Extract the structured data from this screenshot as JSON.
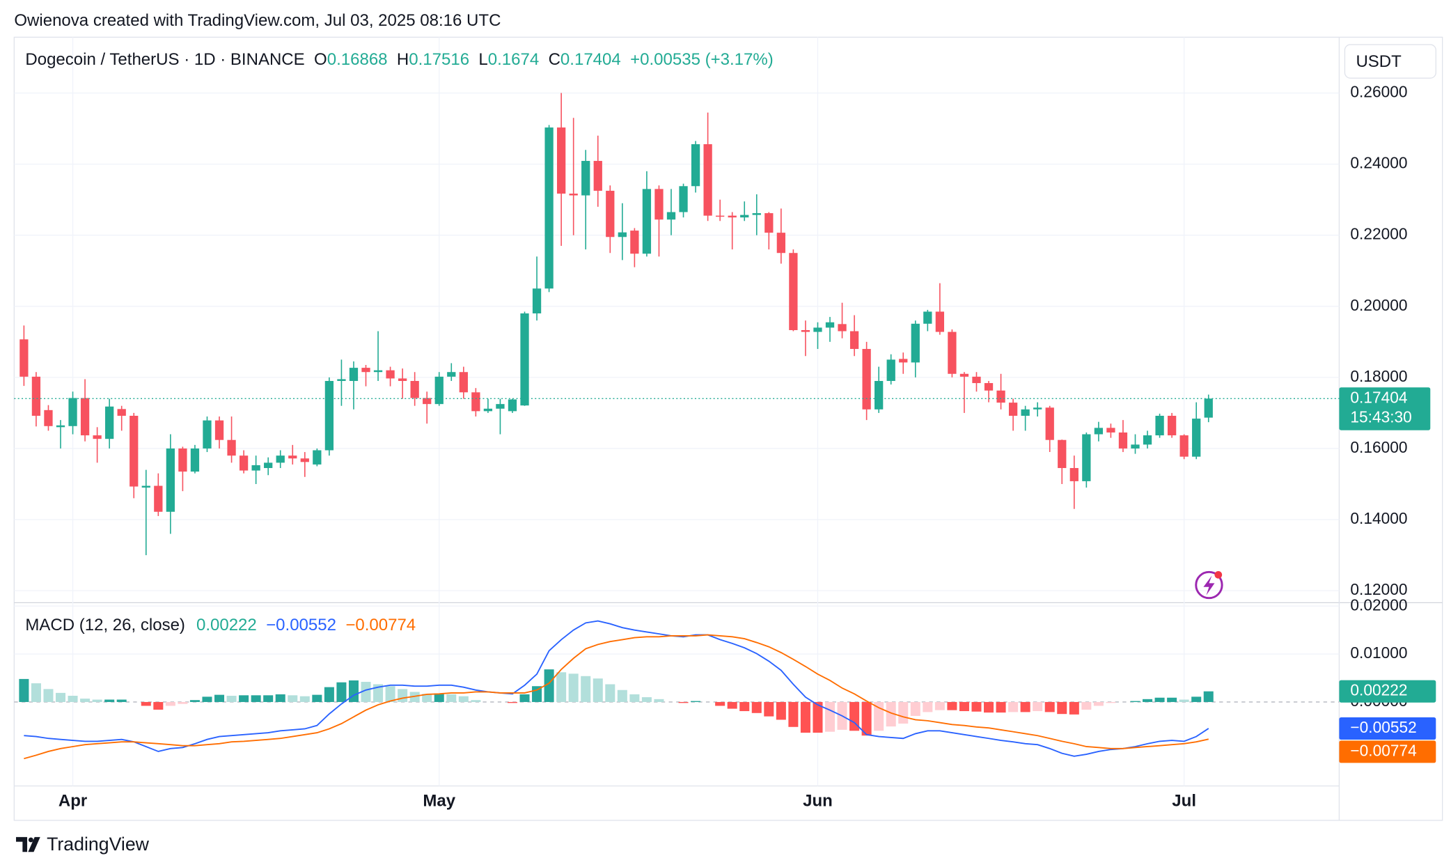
{
  "attribution": "Owienova created with TradingView.com, Jul 03, 2025 08:16 UTC",
  "header": {
    "symbol": "Dogecoin / TetherUS · 1D · BINANCE",
    "o": "O",
    "h": "H",
    "l": "L",
    "c": "C",
    "change": "+0.00535 (+3.17%)"
  },
  "currency": "USDT",
  "footer": "TradingView",
  "chart_data": [
    {
      "type": "candlestick",
      "up_color": "#22ab94",
      "down_color": "#f7525f",
      "countdown": "15:43:30",
      "xlim": [
        -0.8,
        107.7
      ],
      "xticks": [
        {
          "value": 4,
          "label": "Apr"
        },
        {
          "value": 34,
          "label": "May"
        },
        {
          "value": 65,
          "label": "Jun"
        },
        {
          "value": 95,
          "label": "Jul"
        }
      ],
      "ylim": [
        0.1174,
        0.2757
      ],
      "yticks": [
        {
          "value": 0.12,
          "label": "0.12000"
        },
        {
          "value": 0.14,
          "label": "0.14000"
        },
        {
          "value": 0.16,
          "label": "0.16000"
        },
        {
          "value": 0.18,
          "label": "0.18000"
        },
        {
          "value": 0.2,
          "label": "0.20000"
        },
        {
          "value": 0.22,
          "label": "0.22000"
        },
        {
          "value": 0.24,
          "label": "0.24000"
        },
        {
          "value": 0.26,
          "label": "0.26000"
        }
      ],
      "grid": true,
      "open": [
        0.1907,
        0.1802,
        0.1708,
        0.166,
        0.1663,
        0.1742,
        0.1637,
        0.1627,
        0.1711,
        0.1692,
        0.149,
        0.1495,
        0.1422,
        0.16,
        0.1535,
        0.16,
        0.1679,
        0.1624,
        0.158,
        0.1538,
        0.1545,
        0.156,
        0.158,
        0.1572,
        0.1555,
        0.1595,
        0.179,
        0.179,
        0.1827,
        0.1815,
        0.182,
        0.1797,
        0.179,
        0.1742,
        0.1725,
        0.1802,
        0.1815,
        0.1758,
        0.1705,
        0.1712,
        0.1705,
        0.1721,
        0.198,
        0.205,
        0.2503,
        0.2317,
        0.2312,
        0.2409,
        0.2325,
        0.2195,
        0.2213,
        0.2148,
        0.233,
        0.2244,
        0.2265,
        0.2338,
        0.2456,
        0.2255,
        0.2255,
        0.225,
        0.2257,
        0.2262,
        0.2207,
        0.215,
        0.1933,
        0.1928,
        0.194,
        0.195,
        0.193,
        0.188,
        0.171,
        0.179,
        0.1852,
        0.1842,
        0.1951,
        0.1985,
        0.1928,
        0.181,
        0.1802,
        0.1784,
        0.1763,
        0.1729,
        0.1692,
        0.171,
        0.1715,
        0.1624,
        0.1545,
        0.1508,
        0.164,
        0.1658,
        0.1645,
        0.16,
        0.1611,
        0.1637,
        0.1692,
        0.1637,
        0.1577,
        0.16868
      ],
      "high": [
        0.1946,
        0.1815,
        0.1722,
        0.168,
        0.176,
        0.1795,
        0.166,
        0.174,
        0.172,
        0.17,
        0.154,
        0.153,
        0.164,
        0.1605,
        0.161,
        0.169,
        0.169,
        0.169,
        0.1595,
        0.158,
        0.1575,
        0.1595,
        0.161,
        0.159,
        0.16,
        0.18,
        0.185,
        0.1845,
        0.1835,
        0.193,
        0.183,
        0.1825,
        0.1815,
        0.176,
        0.1815,
        0.184,
        0.183,
        0.177,
        0.174,
        0.174,
        0.174,
        0.1985,
        0.214,
        0.251,
        0.26,
        0.253,
        0.244,
        0.248,
        0.234,
        0.229,
        0.222,
        0.238,
        0.234,
        0.233,
        0.2345,
        0.2465,
        0.2545,
        0.23,
        0.2265,
        0.2295,
        0.2315,
        0.2265,
        0.2275,
        0.216,
        0.196,
        0.1955,
        0.197,
        0.201,
        0.1975,
        0.19,
        0.183,
        0.1865,
        0.187,
        0.196,
        0.199,
        0.2065,
        0.1935,
        0.1815,
        0.1815,
        0.179,
        0.181,
        0.174,
        0.172,
        0.173,
        0.172,
        0.1625,
        0.158,
        0.1645,
        0.1675,
        0.167,
        0.168,
        0.164,
        0.165,
        0.1698,
        0.17,
        0.164,
        0.173,
        0.17516
      ],
      "low": [
        0.1776,
        0.1662,
        0.165,
        0.16,
        0.164,
        0.162,
        0.156,
        0.16,
        0.165,
        0.146,
        0.13,
        0.141,
        0.136,
        0.148,
        0.153,
        0.159,
        0.16,
        0.156,
        0.153,
        0.15,
        0.1525,
        0.1545,
        0.1555,
        0.152,
        0.155,
        0.158,
        0.172,
        0.171,
        0.1775,
        0.179,
        0.1775,
        0.174,
        0.172,
        0.167,
        0.172,
        0.179,
        0.174,
        0.169,
        0.17,
        0.164,
        0.17,
        0.172,
        0.196,
        0.204,
        0.217,
        0.22,
        0.216,
        0.228,
        0.215,
        0.213,
        0.211,
        0.214,
        0.214,
        0.22,
        0.225,
        0.232,
        0.224,
        0.224,
        0.216,
        0.224,
        0.22,
        0.216,
        0.212,
        0.193,
        0.186,
        0.188,
        0.19,
        0.191,
        0.186,
        0.168,
        0.17,
        0.178,
        0.181,
        0.18,
        0.193,
        0.192,
        0.18,
        0.17,
        0.176,
        0.173,
        0.171,
        0.165,
        0.165,
        0.169,
        0.159,
        0.15,
        0.143,
        0.149,
        0.162,
        0.163,
        0.159,
        0.1585,
        0.16,
        0.163,
        0.163,
        0.157,
        0.157,
        0.1674
      ],
      "close": [
        0.1802,
        0.1692,
        0.1663,
        0.1665,
        0.1742,
        0.1637,
        0.1627,
        0.1718,
        0.1692,
        0.1493,
        0.1495,
        0.1422,
        0.16,
        0.1535,
        0.16,
        0.1679,
        0.1624,
        0.158,
        0.1538,
        0.1553,
        0.156,
        0.158,
        0.1572,
        0.1562,
        0.1595,
        0.179,
        0.1795,
        0.1827,
        0.1815,
        0.182,
        0.1797,
        0.179,
        0.1742,
        0.1725,
        0.1802,
        0.1815,
        0.1758,
        0.1705,
        0.1712,
        0.1725,
        0.1738,
        0.198,
        0.205,
        0.2503,
        0.2317,
        0.2312,
        0.2409,
        0.2325,
        0.2195,
        0.2208,
        0.2148,
        0.233,
        0.2244,
        0.2265,
        0.2338,
        0.2456,
        0.2255,
        0.2252,
        0.225,
        0.2257,
        0.2262,
        0.2207,
        0.215,
        0.1933,
        0.1928,
        0.194,
        0.1955,
        0.193,
        0.188,
        0.171,
        0.179,
        0.185,
        0.1842,
        0.1951,
        0.1985,
        0.1928,
        0.181,
        0.1802,
        0.1784,
        0.1763,
        0.1729,
        0.1692,
        0.171,
        0.1715,
        0.1624,
        0.1545,
        0.1508,
        0.164,
        0.1658,
        0.1645,
        0.16,
        0.1611,
        0.1637,
        0.1692,
        0.1637,
        0.1577,
        0.1684,
        0.17404
      ]
    },
    {
      "type": "macd",
      "title": "MACD (12, 26, close)",
      "ylim": [
        -0.0175,
        0.0207
      ],
      "yticks": [
        {
          "value": 0,
          "label": "0.00000"
        },
        {
          "value": 0.01,
          "label": "0.01000"
        },
        {
          "value": 0.02,
          "label": "0.02000"
        }
      ],
      "histogram": {
        "colors": [
          "#26a69a",
          "#b2dfdb",
          "#ffcdd2",
          "#ff5252"
        ],
        "values": [
          0.0048,
          0.0039,
          0.0027,
          0.0019,
          0.0013,
          0.0007,
          0.0005,
          0.0005,
          0.0005,
          0.0,
          -0.0008,
          -0.0016,
          -0.0008,
          -0.0004,
          0.0004,
          0.0011,
          0.0015,
          0.0013,
          0.0014,
          0.0014,
          0.0014,
          0.0016,
          0.0014,
          0.0012,
          0.0015,
          0.0031,
          0.0041,
          0.0045,
          0.0042,
          0.0037,
          0.0033,
          0.0027,
          0.0021,
          0.0017,
          0.0018,
          0.0016,
          0.0012,
          0.0004,
          0.0,
          0.0,
          -0.0002,
          0.0016,
          0.0033,
          0.0068,
          0.0062,
          0.0059,
          0.0054,
          0.0049,
          0.0037,
          0.0025,
          0.0016,
          0.001,
          0.0006,
          0.0,
          -0.0002,
          0.0002,
          0.0,
          -0.0008,
          -0.0014,
          -0.0019,
          -0.0023,
          -0.003,
          -0.0037,
          -0.0052,
          -0.0064,
          -0.0064,
          -0.0062,
          -0.0058,
          -0.006,
          -0.007,
          -0.006,
          -0.0051,
          -0.0045,
          -0.0029,
          -0.0021,
          -0.0017,
          -0.0017,
          -0.0019,
          -0.002,
          -0.0022,
          -0.0022,
          -0.0021,
          -0.0021,
          -0.0019,
          -0.0021,
          -0.0025,
          -0.0026,
          -0.0016,
          -0.0008,
          -0.0002,
          0.0,
          0.0002,
          0.0006,
          0.0009,
          0.0009,
          0.0005,
          0.0011,
          0.00222
        ]
      },
      "macd": {
        "color": "#2962ff",
        "value_labels": {
          "97": "−0.00552"
        },
        "values": [
          -0.007,
          -0.0072,
          -0.0076,
          -0.0078,
          -0.008,
          -0.0082,
          -0.0082,
          -0.008,
          -0.0078,
          -0.0083,
          -0.0093,
          -0.0103,
          -0.0097,
          -0.0095,
          -0.0087,
          -0.0078,
          -0.0072,
          -0.007,
          -0.0068,
          -0.0066,
          -0.0064,
          -0.006,
          -0.0058,
          -0.0056,
          -0.0049,
          -0.0025,
          -0.0004,
          0.0014,
          0.0025,
          0.0031,
          0.0035,
          0.0035,
          0.0033,
          0.0033,
          0.0035,
          0.0035,
          0.0031,
          0.0025,
          0.0021,
          0.0019,
          0.0017,
          0.0035,
          0.0058,
          0.0107,
          0.013,
          0.015,
          0.0165,
          0.0169,
          0.0163,
          0.0155,
          0.015,
          0.0146,
          0.0142,
          0.0138,
          0.0136,
          0.014,
          0.014,
          0.013,
          0.0122,
          0.0113,
          0.0101,
          0.0085,
          0.0066,
          0.0037,
          0.001,
          -0.0006,
          -0.0017,
          -0.0029,
          -0.0043,
          -0.0068,
          -0.0072,
          -0.0074,
          -0.0076,
          -0.0066,
          -0.006,
          -0.006,
          -0.0064,
          -0.0068,
          -0.0072,
          -0.0076,
          -0.008,
          -0.0083,
          -0.0087,
          -0.0089,
          -0.0097,
          -0.0107,
          -0.0113,
          -0.0109,
          -0.0103,
          -0.0099,
          -0.0097,
          -0.0093,
          -0.0087,
          -0.0082,
          -0.008,
          -0.0082,
          -0.0072,
          -0.00552
        ]
      },
      "signal": {
        "color": "#ff6d00",
        "value_labels": {
          "97": "−0.00774"
        },
        "values": [
          -0.0118,
          -0.0111,
          -0.0103,
          -0.0097,
          -0.0093,
          -0.0089,
          -0.0087,
          -0.0085,
          -0.0083,
          -0.0083,
          -0.0085,
          -0.0087,
          -0.0089,
          -0.0091,
          -0.0091,
          -0.0089,
          -0.0087,
          -0.0083,
          -0.0082,
          -0.008,
          -0.0078,
          -0.0076,
          -0.0072,
          -0.0068,
          -0.0064,
          -0.0056,
          -0.0045,
          -0.0031,
          -0.0017,
          -0.0006,
          0.0002,
          0.0008,
          0.0012,
          0.0016,
          0.0017,
          0.0019,
          0.0019,
          0.0021,
          0.0021,
          0.0019,
          0.0019,
          0.0019,
          0.0025,
          0.0039,
          0.0068,
          0.0091,
          0.0111,
          0.012,
          0.0126,
          0.013,
          0.0134,
          0.0136,
          0.0136,
          0.0138,
          0.0138,
          0.0138,
          0.014,
          0.0138,
          0.0136,
          0.0132,
          0.0124,
          0.0115,
          0.0103,
          0.0089,
          0.0074,
          0.0058,
          0.0045,
          0.0029,
          0.0017,
          0.0002,
          -0.0012,
          -0.0023,
          -0.0031,
          -0.0037,
          -0.0039,
          -0.0043,
          -0.0047,
          -0.0049,
          -0.0052,
          -0.0054,
          -0.0058,
          -0.0062,
          -0.0066,
          -0.007,
          -0.0076,
          -0.0082,
          -0.0087,
          -0.0093,
          -0.0095,
          -0.0097,
          -0.0097,
          -0.0095,
          -0.0093,
          -0.0091,
          -0.0089,
          -0.0087,
          -0.0083,
          -0.00774
        ]
      }
    }
  ]
}
